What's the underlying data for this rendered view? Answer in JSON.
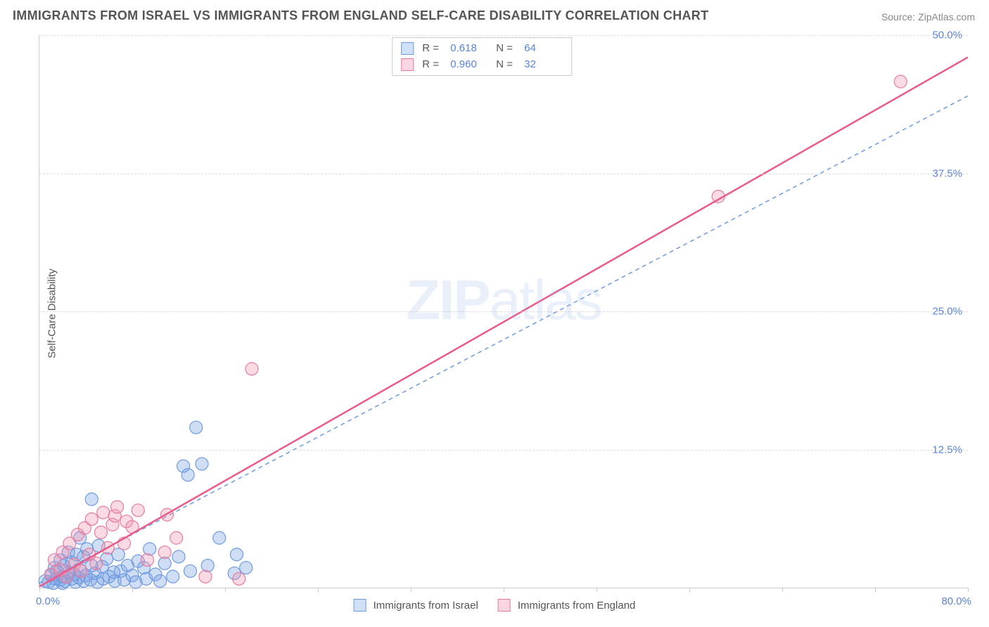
{
  "title": "IMMIGRANTS FROM ISRAEL VS IMMIGRANTS FROM ENGLAND SELF-CARE DISABILITY CORRELATION CHART",
  "source": "Source: ZipAtlas.com",
  "ylabel": "Self-Care Disability",
  "watermark_bold": "ZIP",
  "watermark_light": "atlas",
  "chart": {
    "type": "scatter",
    "xlim": [
      0,
      80
    ],
    "ylim": [
      0,
      50
    ],
    "x_origin_label": "0.0%",
    "x_max_label": "80.0%",
    "yticks": [
      12.5,
      25.0,
      37.5,
      50.0
    ],
    "ytick_labels": [
      "12.5%",
      "25.0%",
      "37.5%",
      "50.0%"
    ],
    "xticks": [
      0,
      8,
      16,
      24,
      32,
      40,
      48,
      56,
      64,
      72,
      80
    ],
    "background_color": "#ffffff",
    "grid_color": "#dddddd",
    "axis_color": "#cccccc",
    "tick_label_color": "#5b84d8",
    "series": [
      {
        "name": "Immigrants from Israel",
        "color_fill": "rgba(120,160,225,0.35)",
        "color_stroke": "#6e9ae0",
        "swatch_fill": "#cfe0f7",
        "swatch_border": "#6e9ae0",
        "marker_radius": 9,
        "R": "0.618",
        "N": "64",
        "trend": {
          "x1": 0,
          "y1": 0.4,
          "x2": 80,
          "y2": 44.5,
          "dash": "6,5",
          "width": 1.5,
          "color": "#6e9ae0"
        },
        "points": [
          [
            0.5,
            0.6
          ],
          [
            0.8,
            0.5
          ],
          [
            1.0,
            1.1
          ],
          [
            1.2,
            0.4
          ],
          [
            1.3,
            1.8
          ],
          [
            1.4,
            0.8
          ],
          [
            1.5,
            1.5
          ],
          [
            1.8,
            0.7
          ],
          [
            1.8,
            2.5
          ],
          [
            2.0,
            0.4
          ],
          [
            2.0,
            1.0
          ],
          [
            2.1,
            2.0
          ],
          [
            2.2,
            0.6
          ],
          [
            2.5,
            1.4
          ],
          [
            2.5,
            3.2
          ],
          [
            2.8,
            0.8
          ],
          [
            2.8,
            2.3
          ],
          [
            3.0,
            1.2
          ],
          [
            3.1,
            0.5
          ],
          [
            3.2,
            3.0
          ],
          [
            3.4,
            0.9
          ],
          [
            3.5,
            1.6
          ],
          [
            3.5,
            4.5
          ],
          [
            3.8,
            0.6
          ],
          [
            3.8,
            2.8
          ],
          [
            4.0,
            1.1
          ],
          [
            4.1,
            3.5
          ],
          [
            4.4,
            0.7
          ],
          [
            4.5,
            2.0
          ],
          [
            4.5,
            8.0
          ],
          [
            4.8,
            1.3
          ],
          [
            5.0,
            0.5
          ],
          [
            5.1,
            3.8
          ],
          [
            5.4,
            1.9
          ],
          [
            5.5,
            0.8
          ],
          [
            5.8,
            2.6
          ],
          [
            6.0,
            1.0
          ],
          [
            6.4,
            1.4
          ],
          [
            6.5,
            0.6
          ],
          [
            6.8,
            3.0
          ],
          [
            7.0,
            1.5
          ],
          [
            7.3,
            0.7
          ],
          [
            7.6,
            2.0
          ],
          [
            8.0,
            1.1
          ],
          [
            8.3,
            0.5
          ],
          [
            8.5,
            2.4
          ],
          [
            9.0,
            1.8
          ],
          [
            9.2,
            0.8
          ],
          [
            9.5,
            3.5
          ],
          [
            10.0,
            1.2
          ],
          [
            10.4,
            0.6
          ],
          [
            10.8,
            2.2
          ],
          [
            11.5,
            1.0
          ],
          [
            12.0,
            2.8
          ],
          [
            12.4,
            11.0
          ],
          [
            12.8,
            10.2
          ],
          [
            13.0,
            1.5
          ],
          [
            13.5,
            14.5
          ],
          [
            14.0,
            11.2
          ],
          [
            14.5,
            2.0
          ],
          [
            15.5,
            4.5
          ],
          [
            16.8,
            1.3
          ],
          [
            17.0,
            3.0
          ],
          [
            17.8,
            1.8
          ]
        ]
      },
      {
        "name": "Immigrants from England",
        "color_fill": "rgba(240,150,175,0.35)",
        "color_stroke": "#e87ca0",
        "swatch_fill": "#f9d6e1",
        "swatch_border": "#e87ca0",
        "marker_radius": 9,
        "R": "0.960",
        "N": "32",
        "trend": {
          "x1": 0,
          "y1": 0.1,
          "x2": 80,
          "y2": 48.0,
          "dash": "none",
          "width": 2.5,
          "color": "#ea5a8b"
        },
        "points": [
          [
            1.0,
            1.2
          ],
          [
            1.3,
            2.5
          ],
          [
            1.8,
            1.6
          ],
          [
            2.0,
            3.2
          ],
          [
            2.3,
            1.0
          ],
          [
            2.6,
            4.0
          ],
          [
            3.0,
            2.1
          ],
          [
            3.3,
            4.8
          ],
          [
            3.6,
            1.5
          ],
          [
            3.9,
            5.4
          ],
          [
            4.3,
            3.0
          ],
          [
            4.5,
            6.2
          ],
          [
            4.9,
            2.2
          ],
          [
            5.3,
            5.0
          ],
          [
            5.5,
            6.8
          ],
          [
            5.9,
            3.6
          ],
          [
            6.3,
            5.7
          ],
          [
            6.5,
            6.5
          ],
          [
            6.7,
            7.3
          ],
          [
            7.3,
            4.0
          ],
          [
            7.5,
            6.0
          ],
          [
            8.0,
            5.5
          ],
          [
            8.5,
            7.0
          ],
          [
            9.3,
            2.5
          ],
          [
            10.8,
            3.2
          ],
          [
            11.0,
            6.6
          ],
          [
            11.8,
            4.5
          ],
          [
            14.3,
            1.0
          ],
          [
            17.2,
            0.8
          ],
          [
            18.3,
            19.8
          ],
          [
            58.5,
            35.4
          ],
          [
            74.2,
            45.8
          ]
        ]
      }
    ]
  },
  "legend_top_labels": {
    "R": "R =",
    "N": "N ="
  },
  "legend_bottom": [
    "Immigrants from Israel",
    "Immigrants from England"
  ]
}
